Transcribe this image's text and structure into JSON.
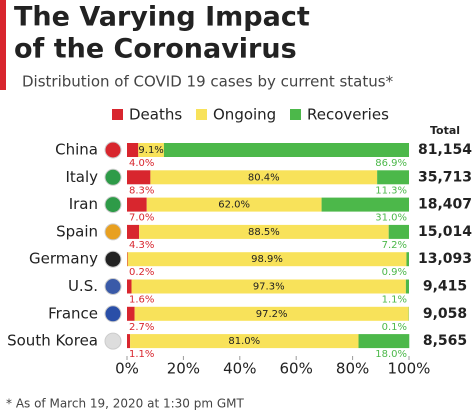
{
  "chart_data": {
    "type": "stacked-bar-horizontal",
    "title": [
      "The Varying Impact",
      "of the Coronavirus"
    ],
    "subtitle": "Distribution of COVID 19 cases by current status*",
    "footnote": "* As of March 19, 2020 at 1:30 pm GMT",
    "categories": [
      "China",
      "Italy",
      "Iran",
      "Spain",
      "Germany",
      "U.S.",
      "France",
      "South Korea"
    ],
    "series": [
      {
        "name": "Deaths",
        "color": "#d8262e",
        "values": [
          4.0,
          8.3,
          7.0,
          4.3,
          0.2,
          1.6,
          2.7,
          1.1
        ],
        "value_labels": [
          "4.0%",
          "8.3%",
          "7.0%",
          "4.3%",
          "0.2%",
          "1.6%",
          "2.7%",
          "1.1%"
        ]
      },
      {
        "name": "Ongoing",
        "color": "#f8e25a",
        "values": [
          9.1,
          80.4,
          62.0,
          88.5,
          98.9,
          97.3,
          97.2,
          81.0
        ],
        "value_labels": [
          "9.1%",
          "80.4%",
          "62.0%",
          "88.5%",
          "98.9%",
          "97.3%",
          "97.2%",
          "81.0%"
        ]
      },
      {
        "name": "Recoveries",
        "color": "#4cb84a",
        "values": [
          86.9,
          11.3,
          31.0,
          7.2,
          0.9,
          1.1,
          0.1,
          18.0
        ],
        "value_labels": [
          "86.9%",
          "11.3%",
          "31.0%",
          "7.2%",
          "0.9%",
          "1.1%",
          "0.1%",
          "18.0%"
        ]
      }
    ],
    "totals": {
      "name": "Total",
      "values": [
        81154,
        35713,
        18407,
        15014,
        13093,
        9415,
        9058,
        8565
      ],
      "value_labels": [
        "81,154",
        "35,713",
        "18,407",
        "15,014",
        "13,093",
        "9,415",
        "9,058",
        "8,565"
      ]
    },
    "xlim": [
      0,
      100
    ],
    "xticks": [
      {
        "value": 0,
        "label": "0%"
      },
      {
        "value": 20,
        "label": "20%"
      },
      {
        "value": 40,
        "label": "40%"
      },
      {
        "value": 60,
        "label": "60%"
      },
      {
        "value": 80,
        "label": "80%"
      },
      {
        "value": 100,
        "label": "100%"
      }
    ],
    "legend": "top"
  }
}
